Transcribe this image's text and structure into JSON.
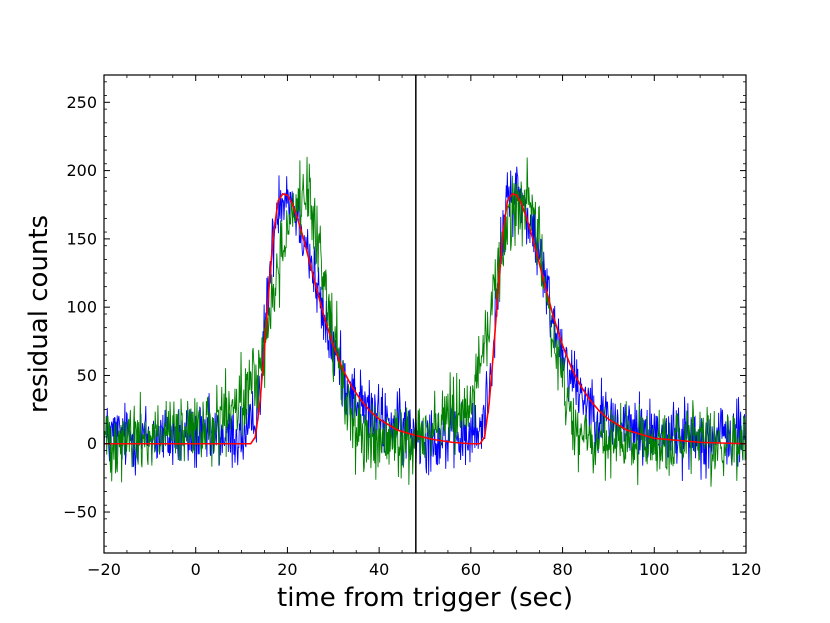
{
  "chart_data": {
    "type": "line",
    "title": "",
    "xlabel": "time from trigger (sec)",
    "ylabel": "residual counts",
    "xlim": [
      -20,
      120
    ],
    "ylim": [
      -80,
      270
    ],
    "xticks": [
      -20,
      0,
      20,
      40,
      60,
      80,
      100,
      120
    ],
    "xtick_labels": [
      "−20",
      "0",
      "20",
      "40",
      "60",
      "80",
      "100",
      "120"
    ],
    "yticks": [
      -50,
      0,
      50,
      100,
      150,
      200,
      250
    ],
    "ytick_labels": [
      "−50",
      "0",
      "50",
      "100",
      "150",
      "200",
      "250"
    ],
    "grid": false,
    "vertical_line_x": 48,
    "series": [
      {
        "style": "noisy",
        "color": "#0000ff",
        "x": [
          -20,
          -10,
          0,
          10,
          12,
          14,
          16,
          18,
          20,
          22,
          24,
          26,
          28,
          30,
          32,
          34,
          36,
          38,
          40,
          44,
          48,
          52,
          56,
          60,
          62,
          64,
          66,
          68,
          70,
          72,
          74,
          76,
          78,
          80,
          82,
          84,
          86,
          88,
          90,
          94,
          100,
          110,
          120
        ],
        "y": [
          5,
          5,
          5,
          5,
          8,
          40,
          120,
          180,
          185,
          170,
          150,
          120,
          90,
          70,
          50,
          38,
          30,
          22,
          18,
          12,
          8,
          5,
          5,
          5,
          8,
          40,
          120,
          180,
          185,
          170,
          150,
          120,
          90,
          70,
          50,
          38,
          30,
          22,
          18,
          12,
          8,
          5,
          5
        ],
        "noise": 22
      },
      {
        "style": "noisy",
        "color": "#008000",
        "x": [
          -20,
          -10,
          0,
          5,
          10,
          14,
          16,
          18,
          20,
          22,
          24,
          26,
          28,
          30,
          32,
          34,
          36,
          40,
          44,
          48,
          50,
          55,
          60,
          62,
          64,
          66,
          68,
          70,
          72,
          74,
          76,
          78,
          80,
          82,
          84,
          86,
          90,
          100,
          110,
          120
        ],
        "y": [
          5,
          5,
          8,
          15,
          30,
          55,
          90,
          130,
          160,
          178,
          180,
          160,
          120,
          80,
          45,
          20,
          5,
          0,
          0,
          5,
          10,
          20,
          35,
          55,
          90,
          130,
          160,
          178,
          180,
          160,
          120,
          80,
          45,
          20,
          5,
          0,
          0,
          0,
          0,
          0
        ],
        "noise": 24
      },
      {
        "style": "smooth",
        "color": "#ff0000",
        "x": [
          -20,
          0,
          10,
          12,
          13,
          14,
          15,
          16,
          17,
          18,
          19,
          20,
          21,
          22,
          23,
          24,
          26,
          28,
          30,
          32,
          34,
          36,
          38,
          40,
          44,
          48,
          52,
          56,
          60,
          62,
          63,
          64,
          65,
          66,
          67,
          68,
          69,
          70,
          71,
          72,
          73,
          74,
          76,
          78,
          80,
          82,
          84,
          86,
          88,
          90,
          94,
          100,
          110,
          120
        ],
        "y": [
          0,
          0,
          0,
          0,
          5,
          30,
          70,
          115,
          155,
          178,
          183,
          182,
          176,
          167,
          156,
          144,
          118,
          93,
          72,
          55,
          42,
          32,
          24,
          18,
          10,
          6,
          3,
          1,
          0,
          0,
          5,
          30,
          70,
          115,
          155,
          178,
          183,
          182,
          176,
          167,
          156,
          144,
          118,
          93,
          72,
          55,
          42,
          32,
          24,
          18,
          10,
          4,
          1,
          0
        ]
      }
    ]
  }
}
